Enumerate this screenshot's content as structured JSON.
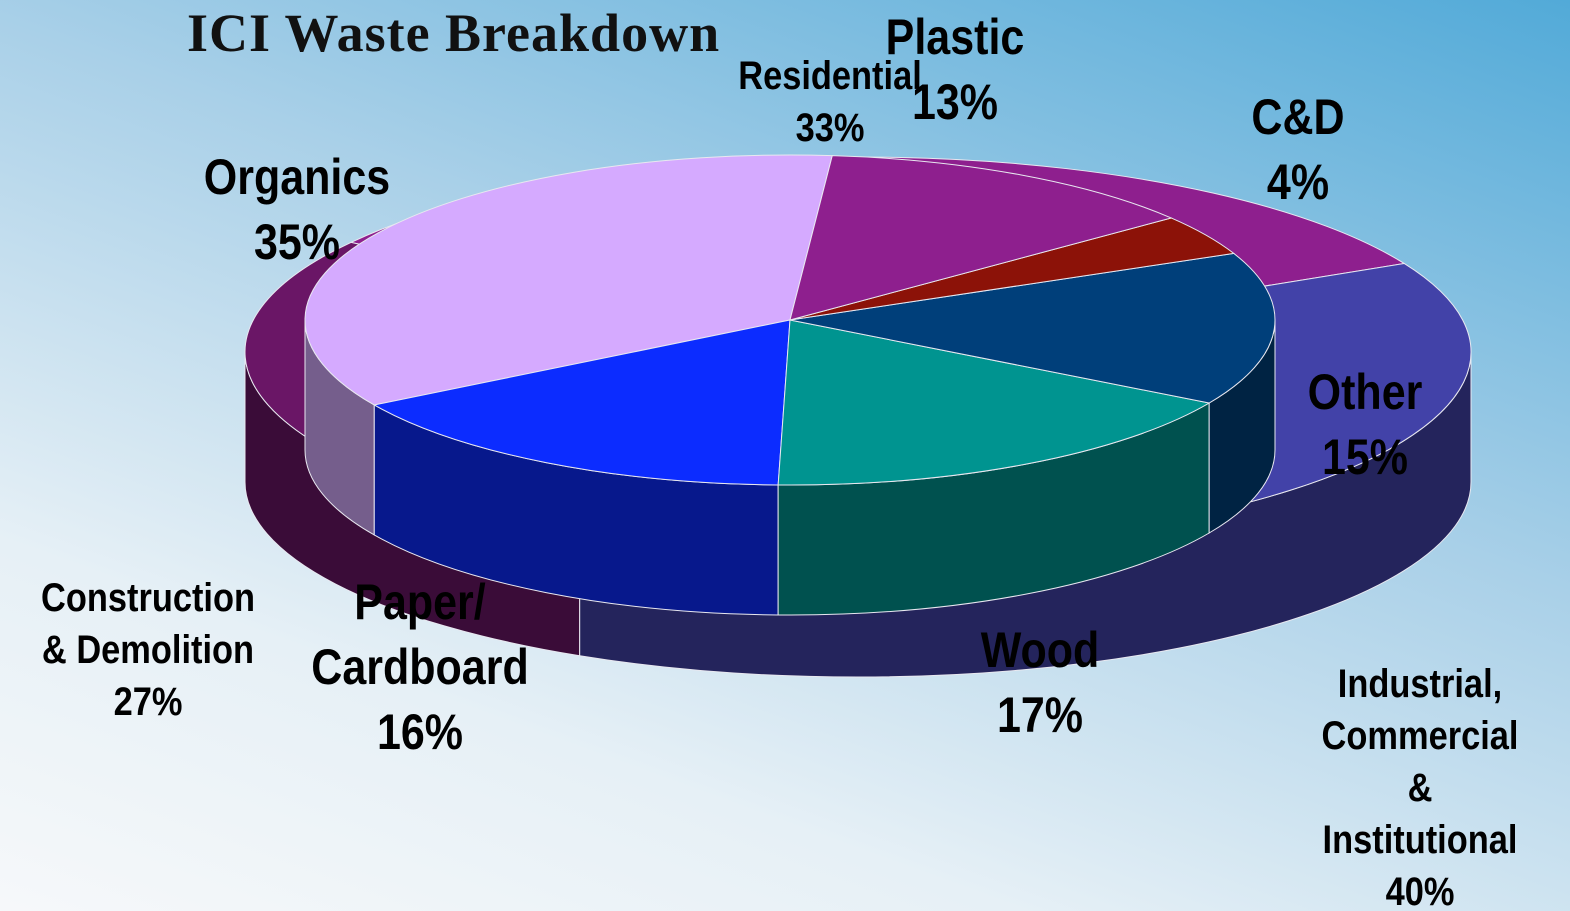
{
  "chart_data": [
    {
      "type": "pie",
      "title": "ICI Waste Breakdown",
      "categories": [
        "Residential",
        "Construction\n& Demolition",
        "Industrial,\nCommercial &\nInstitutional"
      ],
      "values": [
        33,
        27,
        40
      ],
      "value_labels": [
        "33%",
        "27%",
        "40%"
      ],
      "colors": [
        "#8e1f8e",
        "#6a1666",
        "#4242a8"
      ]
    },
    {
      "type": "pie",
      "categories": [
        "Organics",
        "Paper/\nCardboard",
        "Wood",
        "Other",
        "C&D",
        "Plastic"
      ],
      "values": [
        35,
        16,
        17,
        15,
        4,
        13
      ],
      "value_labels": [
        "35%",
        "16%",
        "17%",
        "15%",
        "4%",
        "13%"
      ],
      "colors": [
        "#d5aaff",
        "#0c2cff",
        "#009490",
        "#003f7a",
        "#8c1208",
        "#8e1f8e"
      ]
    }
  ]
}
